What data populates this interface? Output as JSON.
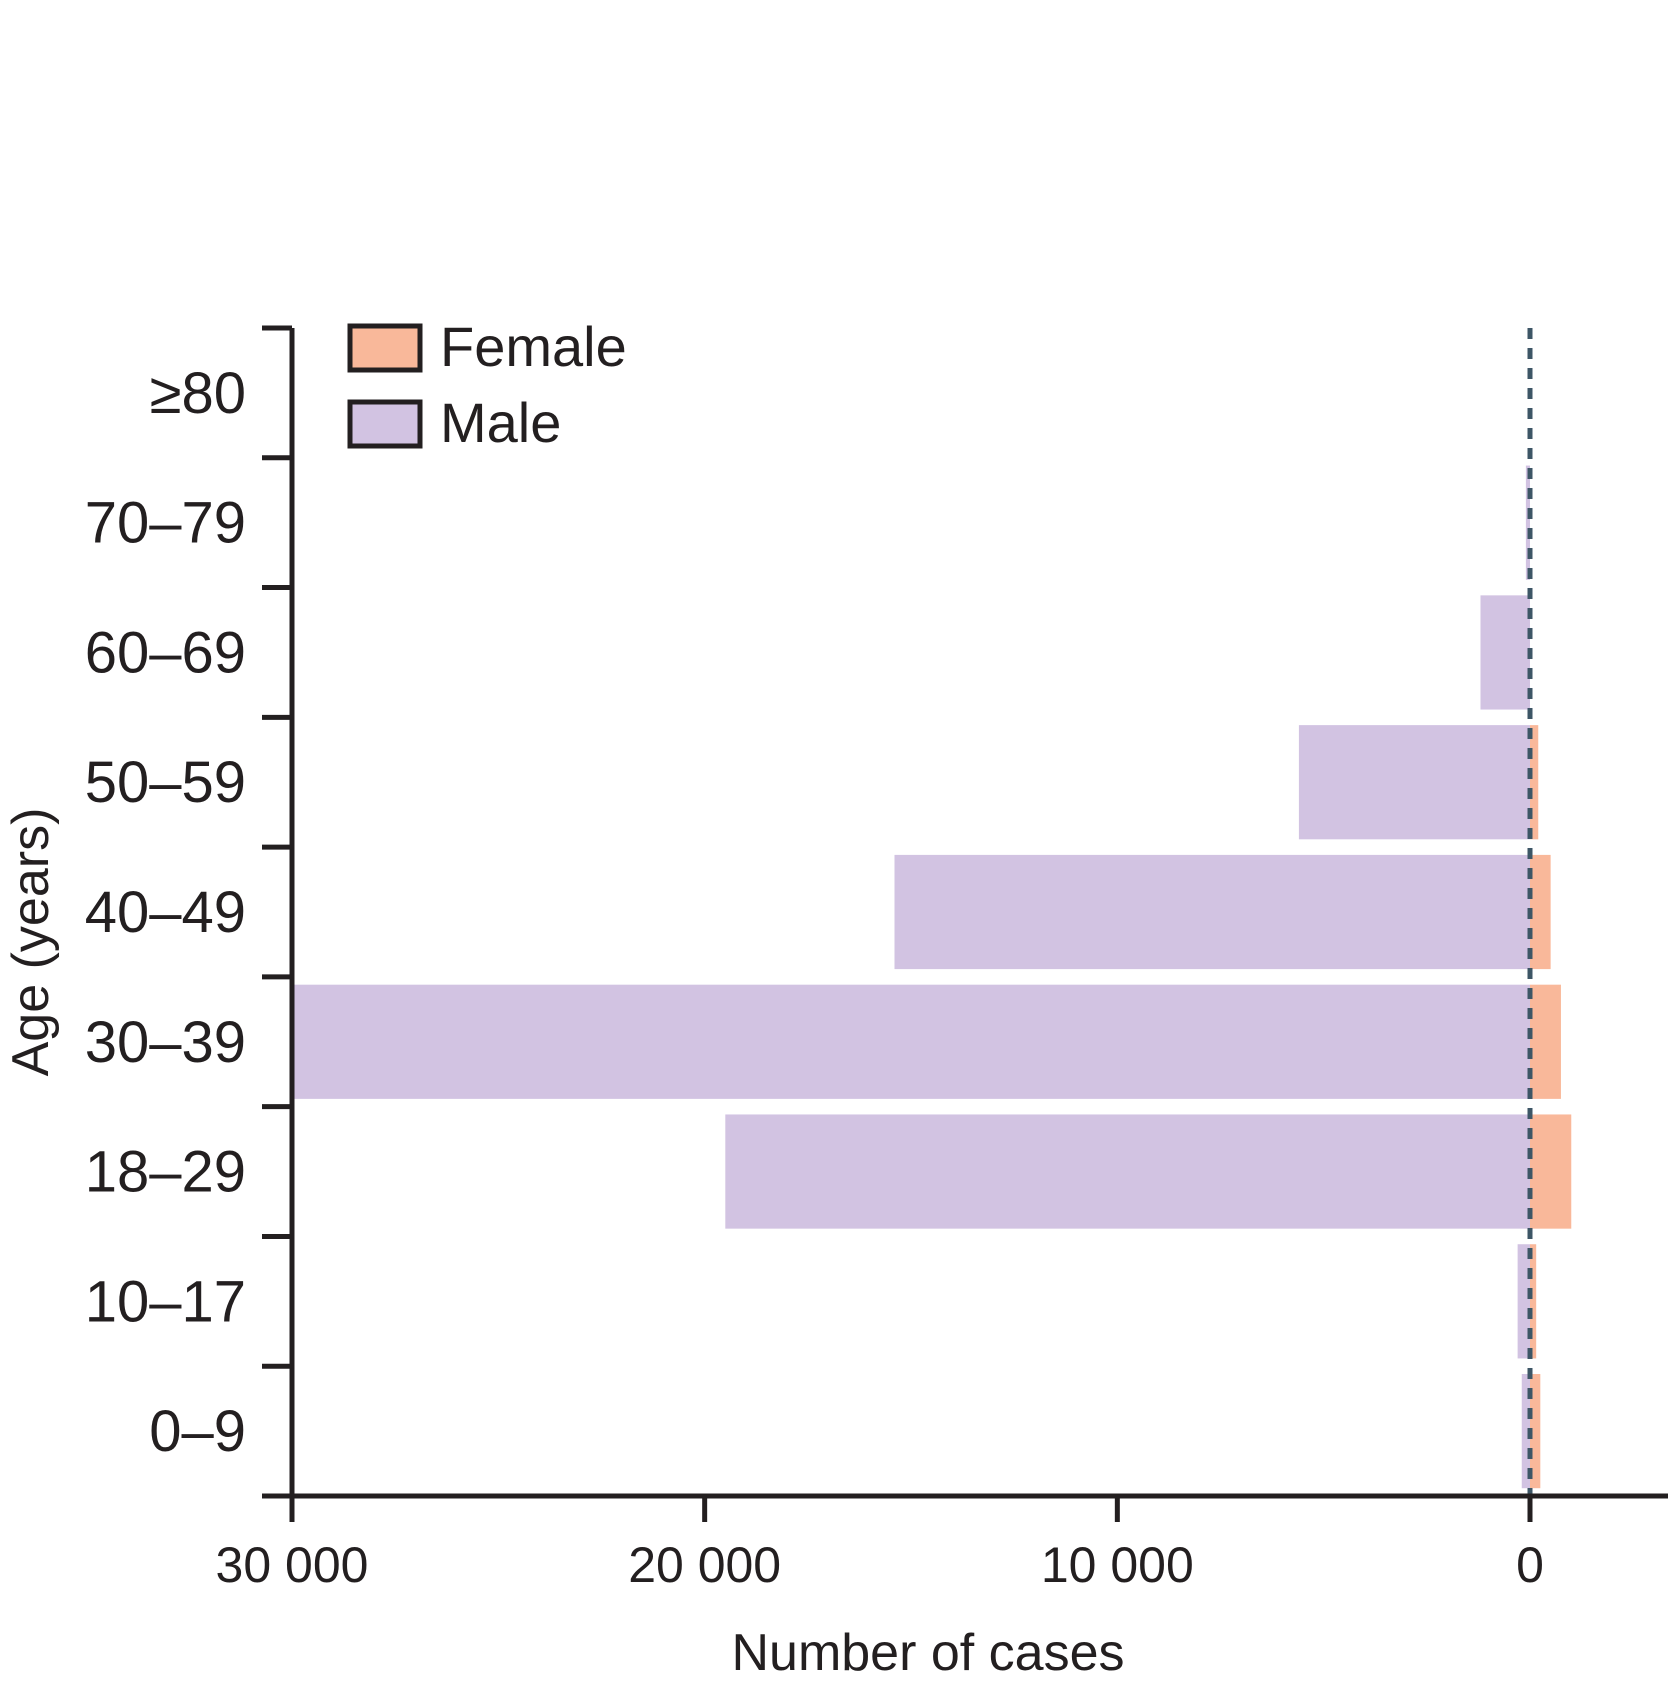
{
  "chart_data": {
    "type": "bar",
    "orientation": "horizontal",
    "layout": "back-to-back",
    "categories": [
      "0–9",
      "10–17",
      "18–29",
      "30–39",
      "40–49",
      "50–59",
      "60–69",
      "70–79",
      "≥80"
    ],
    "series": [
      {
        "name": "Female",
        "color": "#f9b89a",
        "values": [
          250,
          150,
          1000,
          750,
          500,
          200,
          0,
          0,
          0
        ]
      },
      {
        "name": "Male",
        "color": "#d2c3e2",
        "values": [
          200,
          300,
          19500,
          30000,
          15400,
          5600,
          1200,
          100,
          0
        ]
      }
    ],
    "xlabel": "Number of cases",
    "ylabel": "Age (years)",
    "xlim": [
      30000,
      -3300
    ],
    "xticks": [
      30000,
      20000,
      10000,
      0
    ],
    "xtick_labels": [
      "30 000",
      "20 000",
      "10 000",
      "0"
    ],
    "zero_line": "dashed",
    "grid": false,
    "legend": {
      "position": "top-left",
      "items": [
        "Female",
        "Male"
      ]
    }
  }
}
